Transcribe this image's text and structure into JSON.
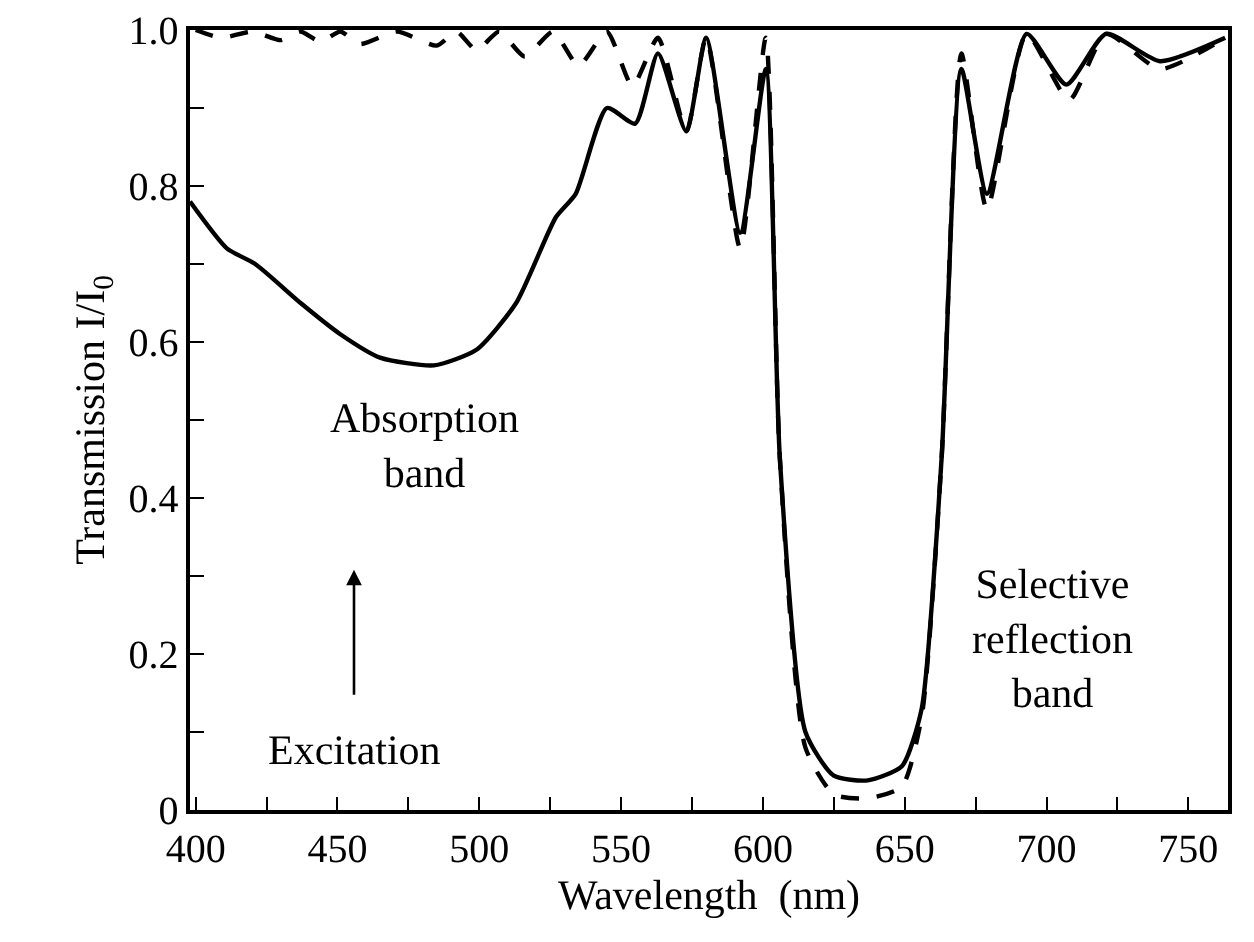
{
  "chart_data": {
    "type": "line",
    "xlabel": "Wavelength  (nm)",
    "ylabel": "Transmission I/I$_{0}$",
    "xlim": [
      398,
      764
    ],
    "ylim": [
      0,
      1.0
    ],
    "xticks": [
      400,
      {
        "value": 425,
        "label": null
      },
      450,
      {
        "value": 475,
        "label": null
      },
      500,
      {
        "value": 525,
        "label": null
      },
      550,
      {
        "value": 575,
        "label": null
      },
      600,
      {
        "value": 625,
        "label": null
      },
      650,
      {
        "value": 675,
        "label": null
      },
      700,
      {
        "value": 725,
        "label": null
      },
      750
    ],
    "yticks": [
      0,
      {
        "value": 0.1,
        "label": null
      },
      0.2,
      {
        "value": 0.3,
        "label": null
      },
      0.4,
      {
        "value": 0.5,
        "label": null
      },
      0.6,
      {
        "value": 0.7,
        "label": null
      },
      0.8,
      {
        "value": 0.9,
        "label": null
      },
      {
        "value": 1.0,
        "label": "1.0"
      }
    ],
    "marker": "none",
    "series": [
      {
        "color": "#000000",
        "line_style": "solid",
        "x": [
          398,
          411,
          421,
          437,
          451,
          465,
          484,
          499,
          513,
          527,
          534,
          545,
          555,
          563,
          573,
          580,
          592,
          601,
          606,
          615,
          625,
          637,
          649,
          656,
          663,
          670,
          679,
          693,
          707,
          721,
          740,
          763
        ],
        "values": [
          0.78,
          0.72,
          0.7,
          0.65,
          0.61,
          0.58,
          0.57,
          0.59,
          0.65,
          0.76,
          0.79,
          0.9,
          0.88,
          0.97,
          0.87,
          0.99,
          0.74,
          0.95,
          0.45,
          0.1,
          0.044,
          0.038,
          0.056,
          0.13,
          0.45,
          0.95,
          0.79,
          0.995,
          0.93,
          0.995,
          0.96,
          0.99
        ]
      },
      {
        "color": "#000000",
        "line_style": "dashed",
        "x": [
          400,
          409,
          420,
          430,
          437,
          444,
          451,
          458,
          471,
          485,
          492,
          499,
          507,
          516,
          526,
          535,
          545,
          554,
          563,
          573,
          580,
          592,
          601,
          606,
          615,
          625,
          637,
          649,
          656,
          663,
          670,
          679,
          693,
          708,
          721,
          740,
          763
        ],
        "values": [
          1.0,
          0.99,
          0.998,
          0.987,
          0.998,
          0.985,
          0.998,
          0.982,
          0.998,
          0.98,
          0.998,
          0.974,
          0.998,
          0.966,
          0.998,
          0.954,
          0.998,
          0.928,
          0.99,
          0.87,
          0.99,
          0.72,
          0.99,
          0.45,
          0.08,
          0.02,
          0.015,
          0.03,
          0.12,
          0.45,
          0.97,
          0.77,
          0.995,
          0.91,
          0.995,
          0.95,
          0.99
        ]
      }
    ],
    "annotations": [
      "Absorption\nband",
      "Excitation",
      "Selective\nreflection\nband"
    ]
  }
}
